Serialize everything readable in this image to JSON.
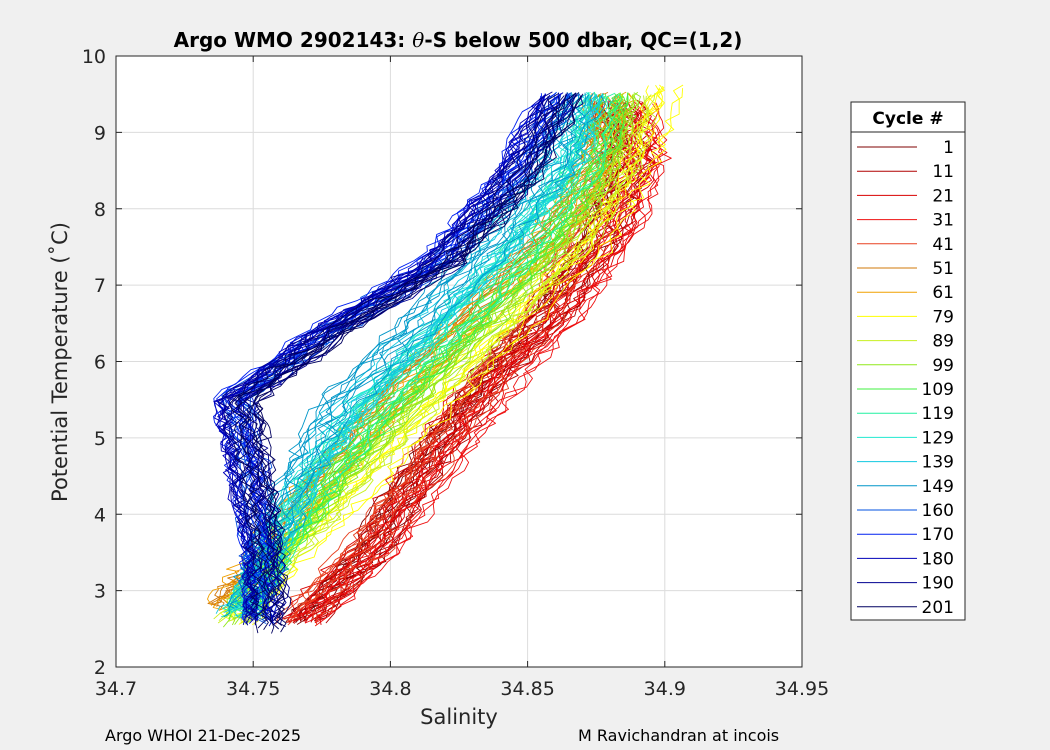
{
  "chart_data": {
    "type": "line",
    "title_parts": [
      "Argo WMO 2902143: ",
      "θ",
      "-S below 500 dbar,  QC=(1,2)"
    ],
    "xlabel": "Salinity",
    "ylabel": "Potential Temperature (˚C)",
    "xlim": [
      34.7,
      34.95
    ],
    "ylim": [
      2,
      10
    ],
    "xticks": [
      34.7,
      34.75,
      34.8,
      34.85,
      34.9,
      34.95
    ],
    "xtick_labels": [
      "34.7",
      "34.75",
      "34.8",
      "34.85",
      "34.9",
      "34.95"
    ],
    "yticks": [
      2,
      3,
      4,
      5,
      6,
      7,
      8,
      9,
      10
    ],
    "ytick_labels": [
      "2",
      "3",
      "4",
      "5",
      "6",
      "7",
      "8",
      "9",
      "10"
    ],
    "grid": true,
    "legend": {
      "title": "Cycle #",
      "position": "outside-right",
      "entries": [
        {
          "label": "1",
          "color": "#7f0000"
        },
        {
          "label": "11",
          "color": "#b00000"
        },
        {
          "label": "21",
          "color": "#d80000"
        },
        {
          "label": "31",
          "color": "#ee1010"
        },
        {
          "label": "41",
          "color": "#e84020"
        },
        {
          "label": "51",
          "color": "#d2780a"
        },
        {
          "label": "61",
          "color": "#f0a000"
        },
        {
          "label": "79",
          "color": "#ffff00"
        },
        {
          "label": "89",
          "color": "#c8f020"
        },
        {
          "label": "99",
          "color": "#90e81a"
        },
        {
          "label": "109",
          "color": "#40f040"
        },
        {
          "label": "119",
          "color": "#20f0a0"
        },
        {
          "label": "129",
          "color": "#20e8d0"
        },
        {
          "label": "139",
          "color": "#10c8e0"
        },
        {
          "label": "149",
          "color": "#0096c8"
        },
        {
          "label": "160",
          "color": "#0050e0"
        },
        {
          "label": "170",
          "color": "#0020f0"
        },
        {
          "label": "180",
          "color": "#0000b8"
        },
        {
          "label": "190",
          "color": "#000090"
        },
        {
          "label": "201",
          "color": "#000060"
        }
      ]
    },
    "series_keypoints": [
      {
        "color": "#7f0000",
        "points": [
          [
            34.768,
            2.6
          ],
          [
            34.79,
            3.4
          ],
          [
            34.81,
            4.6
          ],
          [
            34.83,
            5.6
          ],
          [
            34.855,
            6.6
          ],
          [
            34.875,
            7.7
          ],
          [
            34.885,
            8.6
          ],
          [
            34.88,
            9.4
          ]
        ]
      },
      {
        "color": "#b00000",
        "points": [
          [
            34.768,
            2.6
          ],
          [
            34.792,
            3.5
          ],
          [
            34.812,
            4.6
          ],
          [
            34.832,
            5.6
          ],
          [
            34.858,
            6.6
          ],
          [
            34.878,
            7.7
          ],
          [
            34.888,
            8.6
          ],
          [
            34.88,
            9.4
          ]
        ]
      },
      {
        "color": "#d80000",
        "points": [
          [
            34.766,
            2.6
          ],
          [
            34.79,
            3.5
          ],
          [
            34.81,
            4.6
          ],
          [
            34.83,
            5.6
          ],
          [
            34.858,
            6.6
          ],
          [
            34.88,
            7.7
          ],
          [
            34.89,
            8.6
          ],
          [
            34.885,
            9.4
          ]
        ]
      },
      {
        "color": "#ee1010",
        "points": [
          [
            34.768,
            2.6
          ],
          [
            34.795,
            3.5
          ],
          [
            34.818,
            4.6
          ],
          [
            34.838,
            5.6
          ],
          [
            34.862,
            6.6
          ],
          [
            34.883,
            7.7
          ],
          [
            34.893,
            8.6
          ],
          [
            34.89,
            9.4
          ]
        ]
      },
      {
        "color": "#e84020",
        "points": [
          [
            34.766,
            2.6
          ],
          [
            34.79,
            3.5
          ],
          [
            34.812,
            4.6
          ],
          [
            34.832,
            5.6
          ],
          [
            34.855,
            6.6
          ],
          [
            34.872,
            7.7
          ],
          [
            34.884,
            8.6
          ],
          [
            34.88,
            9.4
          ]
        ]
      },
      {
        "color": "#d2780a",
        "points": [
          [
            34.738,
            2.8
          ],
          [
            34.75,
            3.3
          ],
          [
            34.77,
            4.3
          ],
          [
            34.795,
            5.4
          ],
          [
            34.825,
            6.5
          ],
          [
            34.855,
            7.6
          ],
          [
            34.873,
            8.6
          ],
          [
            34.878,
            9.5
          ]
        ]
      },
      {
        "color": "#f0a000",
        "points": [
          [
            34.74,
            2.8
          ],
          [
            34.752,
            3.4
          ],
          [
            34.772,
            4.3
          ],
          [
            34.798,
            5.4
          ],
          [
            34.828,
            6.5
          ],
          [
            34.858,
            7.6
          ],
          [
            34.876,
            8.6
          ],
          [
            34.88,
            9.5
          ]
        ]
      },
      {
        "color": "#ffff00",
        "points": [
          [
            34.745,
            2.6
          ],
          [
            34.76,
            3.4
          ],
          [
            34.79,
            4.4
          ],
          [
            34.815,
            5.4
          ],
          [
            34.845,
            6.5
          ],
          [
            34.875,
            7.6
          ],
          [
            34.89,
            8.6
          ],
          [
            34.9,
            9.6
          ]
        ]
      },
      {
        "color": "#c8f020",
        "points": [
          [
            34.745,
            2.6
          ],
          [
            34.76,
            3.4
          ],
          [
            34.785,
            4.4
          ],
          [
            34.81,
            5.4
          ],
          [
            34.84,
            6.5
          ],
          [
            34.868,
            7.6
          ],
          [
            34.885,
            8.6
          ],
          [
            34.89,
            9.5
          ]
        ]
      },
      {
        "color": "#90e81a",
        "points": [
          [
            34.745,
            2.6
          ],
          [
            34.758,
            3.4
          ],
          [
            34.78,
            4.4
          ],
          [
            34.805,
            5.4
          ],
          [
            34.835,
            6.5
          ],
          [
            34.862,
            7.6
          ],
          [
            34.88,
            8.6
          ],
          [
            34.885,
            9.5
          ]
        ]
      },
      {
        "color": "#40f040",
        "points": [
          [
            34.746,
            2.7
          ],
          [
            34.758,
            3.4
          ],
          [
            34.778,
            4.4
          ],
          [
            34.8,
            5.4
          ],
          [
            34.83,
            6.5
          ],
          [
            34.858,
            7.6
          ],
          [
            34.875,
            8.6
          ],
          [
            34.882,
            9.5
          ]
        ]
      },
      {
        "color": "#20f0a0",
        "points": [
          [
            34.746,
            2.7
          ],
          [
            34.756,
            3.4
          ],
          [
            34.774,
            4.4
          ],
          [
            34.795,
            5.4
          ],
          [
            34.825,
            6.5
          ],
          [
            34.852,
            7.6
          ],
          [
            34.872,
            8.6
          ],
          [
            34.878,
            9.5
          ]
        ]
      },
      {
        "color": "#20e8d0",
        "points": [
          [
            34.746,
            2.7
          ],
          [
            34.756,
            3.4
          ],
          [
            34.77,
            4.4
          ],
          [
            34.79,
            5.4
          ],
          [
            34.82,
            6.5
          ],
          [
            34.848,
            7.6
          ],
          [
            34.868,
            8.6
          ],
          [
            34.876,
            9.5
          ]
        ]
      },
      {
        "color": "#10c8e0",
        "points": [
          [
            34.746,
            2.7
          ],
          [
            34.755,
            3.4
          ],
          [
            34.768,
            4.4
          ],
          [
            34.785,
            5.4
          ],
          [
            34.815,
            6.5
          ],
          [
            34.843,
            7.6
          ],
          [
            34.864,
            8.6
          ],
          [
            34.872,
            9.5
          ]
        ]
      },
      {
        "color": "#0096c8",
        "points": [
          [
            34.747,
            2.7
          ],
          [
            34.754,
            3.4
          ],
          [
            34.765,
            4.4
          ],
          [
            34.78,
            5.4
          ],
          [
            34.81,
            6.5
          ],
          [
            34.838,
            7.6
          ],
          [
            34.86,
            8.6
          ],
          [
            34.87,
            9.5
          ]
        ]
      },
      {
        "color": "#0050e0",
        "points": [
          [
            34.752,
            2.6
          ],
          [
            34.752,
            3.5
          ],
          [
            34.75,
            4.6
          ],
          [
            34.745,
            5.5
          ],
          [
            34.78,
            6.4
          ],
          [
            34.82,
            7.3
          ],
          [
            34.845,
            8.3
          ],
          [
            34.865,
            9.5
          ]
        ]
      },
      {
        "color": "#0020f0",
        "points": [
          [
            34.754,
            2.6
          ],
          [
            34.753,
            3.5
          ],
          [
            34.748,
            4.6
          ],
          [
            34.742,
            5.5
          ],
          [
            34.775,
            6.4
          ],
          [
            34.815,
            7.3
          ],
          [
            34.84,
            8.3
          ],
          [
            34.86,
            9.5
          ]
        ]
      },
      {
        "color": "#0000b8",
        "points": [
          [
            34.755,
            2.6
          ],
          [
            34.754,
            3.5
          ],
          [
            34.748,
            4.6
          ],
          [
            34.744,
            5.5
          ],
          [
            34.778,
            6.4
          ],
          [
            34.818,
            7.3
          ],
          [
            34.842,
            8.3
          ],
          [
            34.862,
            9.5
          ]
        ]
      },
      {
        "color": "#000090",
        "points": [
          [
            34.756,
            2.6
          ],
          [
            34.755,
            3.5
          ],
          [
            34.75,
            4.6
          ],
          [
            34.746,
            5.5
          ],
          [
            34.78,
            6.4
          ],
          [
            34.82,
            7.3
          ],
          [
            34.845,
            8.3
          ],
          [
            34.864,
            9.5
          ]
        ]
      },
      {
        "color": "#000060",
        "points": [
          [
            34.757,
            2.5
          ],
          [
            34.756,
            3.5
          ],
          [
            34.752,
            4.6
          ],
          [
            34.748,
            5.5
          ],
          [
            34.782,
            6.4
          ],
          [
            34.822,
            7.3
          ],
          [
            34.848,
            8.3
          ],
          [
            34.866,
            9.5
          ]
        ]
      }
    ]
  },
  "footer": {
    "left": "Argo WHOI 21-Dec-2025",
    "right": "M Ravichandran at incois"
  }
}
